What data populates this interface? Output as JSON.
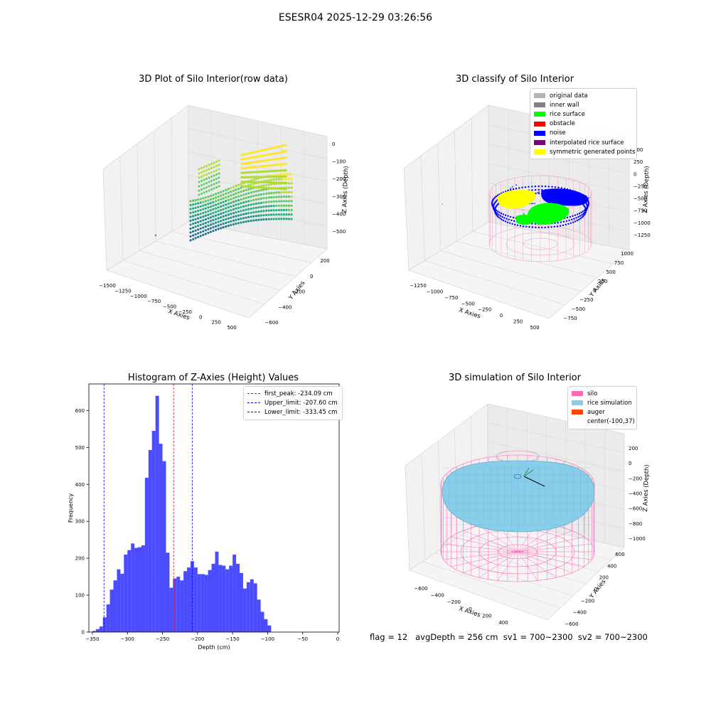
{
  "suptitle": "ESESR04 2025-12-29 03:26:56",
  "panels": {
    "raw": {
      "title": "3D Plot of Silo Interior(row data)",
      "x_label": "X Axies",
      "y_label": "Y Axies",
      "z_label": "Z Axies (Depth)",
      "x_ticks": [
        "−1500",
        "−1250",
        "−1000",
        "−750",
        "−500",
        "−250",
        "0",
        "250",
        "500"
      ],
      "y_ticks": [
        "200",
        "0",
        "−200",
        "−400",
        "−600"
      ],
      "z_ticks": [
        "0",
        "−100",
        "−200",
        "−300",
        "−400",
        "−500"
      ]
    },
    "classify": {
      "title": "3D classify of Silo Interior",
      "x_label": "X Axies",
      "y_label": "Y Axies",
      "z_label": "Z Axies (Depth)",
      "x_ticks": [
        "−1250",
        "−1000",
        "−750",
        "−500",
        "−250",
        "0",
        "250",
        "500"
      ],
      "y_ticks": [
        "1000",
        "750",
        "500",
        "250",
        "0",
        "−250",
        "−500",
        "−750"
      ],
      "z_ticks": [
        "500",
        "250",
        "0",
        "−250",
        "−500",
        "−750",
        "−1000",
        "−1250"
      ],
      "legend": [
        {
          "label": "original data",
          "color": "#b3b3b3"
        },
        {
          "label": "inner wall",
          "color": "#808080"
        },
        {
          "label": "rice surface",
          "color": "#00ff00"
        },
        {
          "label": "obstacle",
          "color": "#ff0000"
        },
        {
          "label": "noise",
          "color": "#0000ff"
        },
        {
          "label": "interpolated rice surface",
          "color": "#800080"
        },
        {
          "label": "symmetric generated points",
          "color": "#ffff00"
        }
      ]
    },
    "simulation": {
      "title": "3D simulation of Silo Interior",
      "x_label": "X Axies",
      "y_label": "Y Axies",
      "z_label": "Z Axies (Depth)",
      "x_ticks": [
        "−600",
        "−400",
        "−200",
        "0",
        "200",
        "400"
      ],
      "y_ticks": [
        "600",
        "400",
        "200",
        "0",
        "−200",
        "−400",
        "−600"
      ],
      "z_ticks": [
        "200",
        "0",
        "−200",
        "−400",
        "−600",
        "−800",
        "−1000"
      ],
      "legend": [
        {
          "label": "silo",
          "color": "#ff69b4"
        },
        {
          "label": "rice simulation",
          "color": "#87ceeb"
        },
        {
          "label": "auger",
          "color": "#ff4500"
        },
        {
          "label": "center(-100,37)",
          "color": ""
        }
      ]
    }
  },
  "status_line": "flag = 12   avgDepth = 256 cm  sv1 = 700~2300  sv2 = 700~2300",
  "chart_data": [
    {
      "type": "bar",
      "title": "Histogram of Z-Axies (Height) Values",
      "xlabel": "Depth (cm)",
      "ylabel": "Frequency",
      "color": "#0000ff",
      "bin_width": 5,
      "bin_start": -350,
      "values": [
        3,
        8,
        15,
        40,
        75,
        115,
        140,
        170,
        158,
        210,
        222,
        240,
        228,
        230,
        235,
        418,
        493,
        545,
        640,
        510,
        463,
        215,
        120,
        145,
        150,
        140,
        165,
        175,
        192,
        175,
        157,
        157,
        155,
        168,
        185,
        218,
        182,
        180,
        170,
        180,
        210,
        185,
        160,
        118,
        135,
        143,
        132,
        88,
        55,
        35,
        18
      ],
      "xlim": [
        -355,
        2
      ],
      "ylim": [
        0,
        672
      ],
      "x_ticks": [
        -350,
        -300,
        -250,
        -200,
        -150,
        -100,
        -50,
        0
      ],
      "y_ticks": [
        0,
        100,
        200,
        300,
        400,
        500,
        600
      ],
      "lines": [
        {
          "name": "first_peak: -234.09 cm",
          "x": -234.09,
          "color": "#ff0000"
        },
        {
          "name": "Upper_limit: -207.60 cm",
          "x": -207.6,
          "color": "#0000ff"
        },
        {
          "name": "Lower_limit: -333.45 cm",
          "x": -333.45,
          "color": "#0000ff"
        }
      ],
      "legend_position": "upper right"
    }
  ]
}
